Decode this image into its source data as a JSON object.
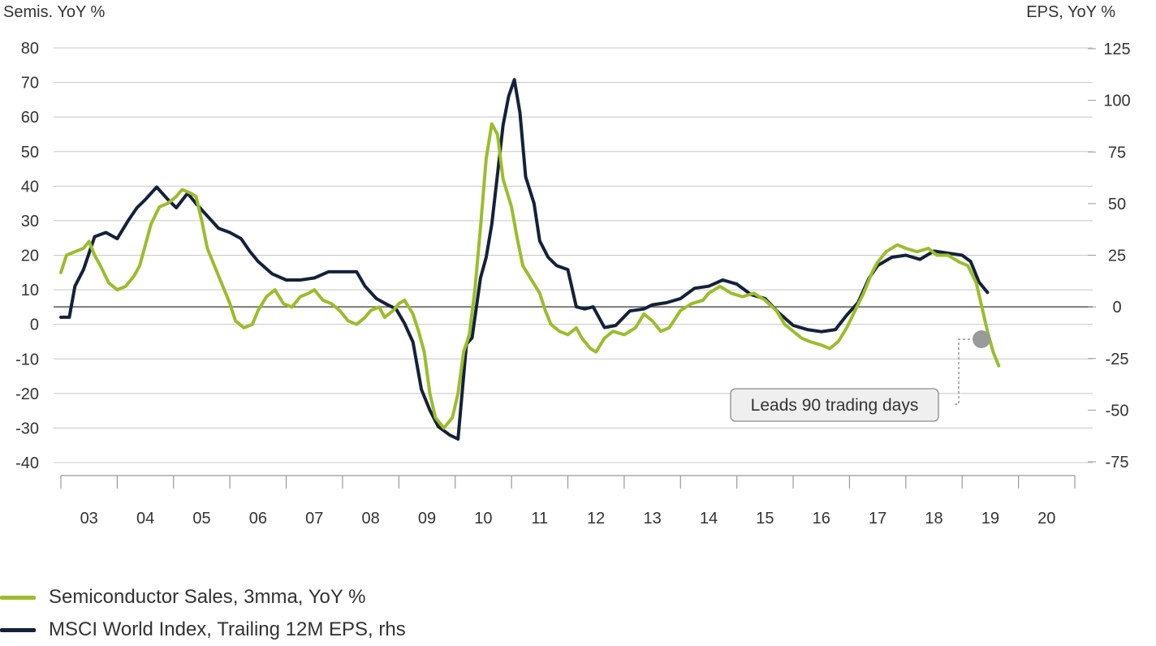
{
  "chart_data": {
    "type": "line",
    "y_left_label": "Semis. YoY %",
    "y_right_label": "EPS, YoY %",
    "y_left_ticks": [
      80,
      70,
      60,
      50,
      40,
      30,
      20,
      10,
      0,
      -10,
      -20,
      -30,
      -40
    ],
    "y_right_ticks": [
      125,
      100,
      75,
      50,
      25,
      0,
      -25,
      -50,
      -75
    ],
    "ylim_left": [
      -40,
      80
    ],
    "ylim_right": [
      -75,
      125
    ],
    "x_tick_labels": [
      "03",
      "04",
      "05",
      "06",
      "07",
      "08",
      "09",
      "10",
      "11",
      "12",
      "13",
      "14",
      "15",
      "16",
      "17",
      "18",
      "19",
      "20"
    ],
    "xlim": [
      2002.5,
      2020.5
    ],
    "grid": true,
    "annotation": "Leads 90 trading days",
    "series": [
      {
        "name": "Semiconductor Sales, 3mma, YoY %",
        "axis": "left",
        "color": "#9bbd2c",
        "points": [
          [
            2002.5,
            15
          ],
          [
            2002.6,
            20
          ],
          [
            2002.75,
            21
          ],
          [
            2002.9,
            22
          ],
          [
            2003.0,
            24
          ],
          [
            2003.1,
            20
          ],
          [
            2003.2,
            17
          ],
          [
            2003.35,
            12
          ],
          [
            2003.5,
            10
          ],
          [
            2003.65,
            11
          ],
          [
            2003.8,
            14
          ],
          [
            2003.9,
            17
          ],
          [
            2004.0,
            23
          ],
          [
            2004.1,
            29
          ],
          [
            2004.25,
            34
          ],
          [
            2004.4,
            35
          ],
          [
            2004.55,
            37
          ],
          [
            2004.65,
            39
          ],
          [
            2004.8,
            38
          ],
          [
            2004.9,
            37
          ],
          [
            2005.0,
            30
          ],
          [
            2005.1,
            22
          ],
          [
            2005.25,
            16
          ],
          [
            2005.35,
            12
          ],
          [
            2005.5,
            6
          ],
          [
            2005.6,
            1
          ],
          [
            2005.75,
            -1
          ],
          [
            2005.9,
            0
          ],
          [
            2006.0,
            4
          ],
          [
            2006.15,
            8
          ],
          [
            2006.3,
            10
          ],
          [
            2006.45,
            6
          ],
          [
            2006.6,
            5
          ],
          [
            2006.75,
            8
          ],
          [
            2006.9,
            9
          ],
          [
            2007.0,
            10
          ],
          [
            2007.15,
            7
          ],
          [
            2007.3,
            6
          ],
          [
            2007.45,
            4
          ],
          [
            2007.6,
            1
          ],
          [
            2007.75,
            0
          ],
          [
            2007.9,
            2
          ],
          [
            2008.0,
            4
          ],
          [
            2008.15,
            5
          ],
          [
            2008.25,
            2
          ],
          [
            2008.4,
            4
          ],
          [
            2008.5,
            6
          ],
          [
            2008.6,
            7
          ],
          [
            2008.75,
            3
          ],
          [
            2008.85,
            -2
          ],
          [
            2008.95,
            -8
          ],
          [
            2009.05,
            -20
          ],
          [
            2009.15,
            -27
          ],
          [
            2009.3,
            -30
          ],
          [
            2009.45,
            -27
          ],
          [
            2009.55,
            -20
          ],
          [
            2009.65,
            -8
          ],
          [
            2009.75,
            -3
          ],
          [
            2009.85,
            10
          ],
          [
            2009.95,
            28
          ],
          [
            2010.05,
            48
          ],
          [
            2010.15,
            58
          ],
          [
            2010.25,
            55
          ],
          [
            2010.35,
            42
          ],
          [
            2010.5,
            34
          ],
          [
            2010.6,
            25
          ],
          [
            2010.7,
            17
          ],
          [
            2010.85,
            13
          ],
          [
            2011.0,
            9
          ],
          [
            2011.1,
            4
          ],
          [
            2011.2,
            0
          ],
          [
            2011.35,
            -2
          ],
          [
            2011.5,
            -3
          ],
          [
            2011.65,
            -1
          ],
          [
            2011.75,
            -4
          ],
          [
            2011.9,
            -7
          ],
          [
            2012.0,
            -8
          ],
          [
            2012.15,
            -4
          ],
          [
            2012.3,
            -2
          ],
          [
            2012.5,
            -3
          ],
          [
            2012.7,
            -1
          ],
          [
            2012.85,
            3
          ],
          [
            2013.0,
            1
          ],
          [
            2013.15,
            -2
          ],
          [
            2013.3,
            -1
          ],
          [
            2013.5,
            4
          ],
          [
            2013.7,
            6
          ],
          [
            2013.9,
            7
          ],
          [
            2014.0,
            9
          ],
          [
            2014.2,
            11
          ],
          [
            2014.4,
            9
          ],
          [
            2014.6,
            8
          ],
          [
            2014.8,
            9
          ],
          [
            2015.0,
            7
          ],
          [
            2015.2,
            4
          ],
          [
            2015.35,
            0
          ],
          [
            2015.5,
            -2
          ],
          [
            2015.65,
            -4
          ],
          [
            2015.8,
            -5
          ],
          [
            2016.0,
            -6
          ],
          [
            2016.15,
            -7
          ],
          [
            2016.3,
            -5
          ],
          [
            2016.45,
            -1
          ],
          [
            2016.6,
            4
          ],
          [
            2016.75,
            9
          ],
          [
            2016.9,
            15
          ],
          [
            2017.0,
            18
          ],
          [
            2017.15,
            21
          ],
          [
            2017.35,
            23
          ],
          [
            2017.5,
            22
          ],
          [
            2017.7,
            21
          ],
          [
            2017.9,
            22
          ],
          [
            2018.05,
            20
          ],
          [
            2018.25,
            20
          ],
          [
            2018.45,
            18
          ],
          [
            2018.6,
            17
          ],
          [
            2018.75,
            12
          ],
          [
            2018.85,
            5
          ],
          [
            2018.95,
            -2
          ],
          [
            2019.05,
            -8
          ],
          [
            2019.15,
            -12
          ]
        ]
      },
      {
        "name": "MSCI World Index, Trailing 12M EPS, rhs",
        "axis": "right",
        "color": "#14213a",
        "points": [
          [
            2002.5,
            -5
          ],
          [
            2002.65,
            -5
          ],
          [
            2002.75,
            10
          ],
          [
            2002.9,
            18
          ],
          [
            2003.1,
            34
          ],
          [
            2003.3,
            36
          ],
          [
            2003.5,
            33
          ],
          [
            2003.7,
            42
          ],
          [
            2003.85,
            48
          ],
          [
            2004.0,
            52
          ],
          [
            2004.2,
            58
          ],
          [
            2004.4,
            52
          ],
          [
            2004.55,
            48
          ],
          [
            2004.75,
            55
          ],
          [
            2004.9,
            50
          ],
          [
            2005.1,
            44
          ],
          [
            2005.3,
            38
          ],
          [
            2005.5,
            36
          ],
          [
            2005.7,
            33
          ],
          [
            2005.85,
            27
          ],
          [
            2006.0,
            22
          ],
          [
            2006.25,
            16
          ],
          [
            2006.5,
            13
          ],
          [
            2006.75,
            13
          ],
          [
            2007.0,
            14
          ],
          [
            2007.25,
            17
          ],
          [
            2007.5,
            17
          ],
          [
            2007.75,
            17
          ],
          [
            2007.9,
            10
          ],
          [
            2008.1,
            4
          ],
          [
            2008.3,
            1
          ],
          [
            2008.45,
            -1
          ],
          [
            2008.6,
            -8
          ],
          [
            2008.75,
            -17
          ],
          [
            2008.9,
            -40
          ],
          [
            2009.05,
            -50
          ],
          [
            2009.2,
            -58
          ],
          [
            2009.4,
            -62
          ],
          [
            2009.55,
            -64
          ],
          [
            2009.7,
            -18
          ],
          [
            2009.8,
            -15
          ],
          [
            2009.95,
            14
          ],
          [
            2010.05,
            24
          ],
          [
            2010.15,
            40
          ],
          [
            2010.25,
            64
          ],
          [
            2010.35,
            88
          ],
          [
            2010.45,
            102
          ],
          [
            2010.55,
            110
          ],
          [
            2010.65,
            94
          ],
          [
            2010.75,
            63
          ],
          [
            2010.9,
            50
          ],
          [
            2011.0,
            32
          ],
          [
            2011.15,
            24
          ],
          [
            2011.3,
            20
          ],
          [
            2011.5,
            18
          ],
          [
            2011.65,
            0
          ],
          [
            2011.8,
            -1
          ],
          [
            2011.95,
            0
          ],
          [
            2012.15,
            -10
          ],
          [
            2012.35,
            -9
          ],
          [
            2012.6,
            -2
          ],
          [
            2012.85,
            -1
          ],
          [
            2013.0,
            1
          ],
          [
            2013.25,
            2
          ],
          [
            2013.5,
            4
          ],
          [
            2013.75,
            9
          ],
          [
            2014.0,
            10
          ],
          [
            2014.25,
            13
          ],
          [
            2014.5,
            11
          ],
          [
            2014.75,
            6
          ],
          [
            2015.0,
            4
          ],
          [
            2015.25,
            -3
          ],
          [
            2015.5,
            -9
          ],
          [
            2015.75,
            -11
          ],
          [
            2016.0,
            -12
          ],
          [
            2016.25,
            -11
          ],
          [
            2016.45,
            -4
          ],
          [
            2016.65,
            2
          ],
          [
            2016.85,
            14
          ],
          [
            2017.0,
            20
          ],
          [
            2017.25,
            24
          ],
          [
            2017.5,
            25
          ],
          [
            2017.75,
            23
          ],
          [
            2018.0,
            27
          ],
          [
            2018.25,
            26
          ],
          [
            2018.5,
            25
          ],
          [
            2018.65,
            22
          ],
          [
            2018.8,
            12
          ],
          [
            2018.95,
            7
          ]
        ]
      }
    ]
  },
  "legend": [
    {
      "label": "Semiconductor Sales, 3mma, YoY %",
      "color": "#9bbd2c"
    },
    {
      "label": "MSCI World Index, Trailing 12M EPS, rhs",
      "color": "#14213a"
    }
  ]
}
